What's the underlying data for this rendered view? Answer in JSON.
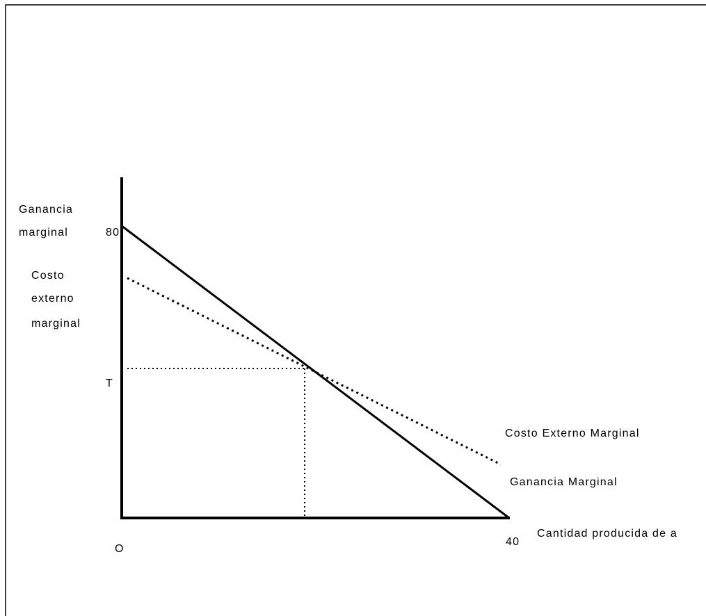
{
  "y_axis_label": {
    "lines": [
      "Ganancia",
      "marginal"
    ]
  },
  "y_axis_label_2": {
    "lines": [
      "Costo",
      "externo",
      "marginal"
    ]
  },
  "y_intercept": "80",
  "tax_level": "T",
  "origin": "O",
  "x_intercept": "40",
  "curves": {
    "external_cost": "Costo Externo Marginal",
    "marginal_gain": "Ganancia Marginal"
  },
  "x_axis_label": "Cantidad producida de a"
}
